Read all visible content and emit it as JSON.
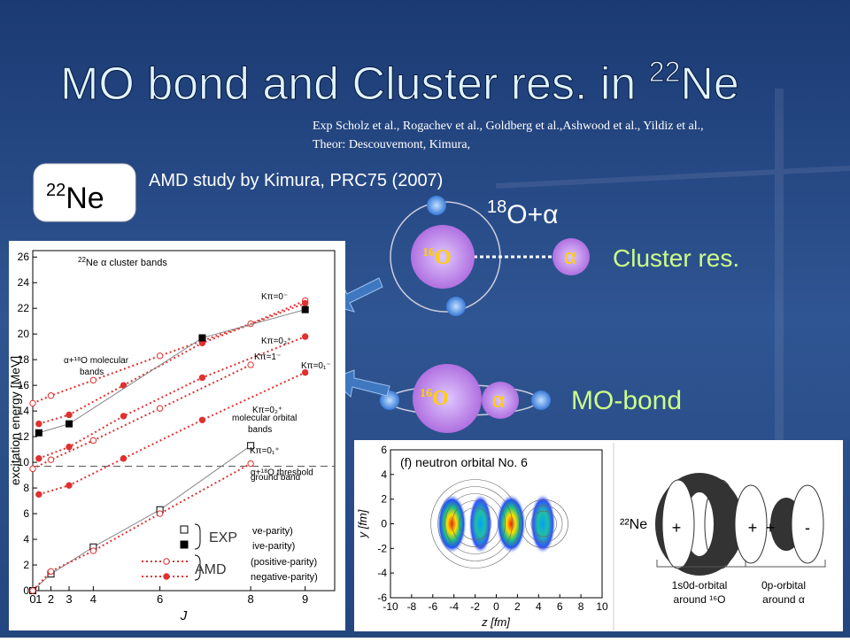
{
  "title": {
    "main": "MO bond and Cluster res. in ",
    "sup": "22",
    "element": "Ne"
  },
  "references": [
    "Exp Scholz et al., Rogachev et al., Goldberg et al.,Ashwood et al., Yildiz et al.,",
    "Theor: Descouvemont, Kimura,"
  ],
  "nucleus_label": {
    "sup": "22",
    "element": "Ne"
  },
  "study": "AMD study by Kimura, PRC75 (2007)",
  "cluster_model": {
    "channel": {
      "sup": "18",
      "text": "O+α"
    },
    "core": {
      "sup": "16",
      "element": "O"
    },
    "alpha": "α",
    "label": "Cluster res."
  },
  "mo_model": {
    "core": {
      "sup": "16",
      "element": "O"
    },
    "alpha": "α",
    "label": "MO-bond"
  },
  "energy_plot": {
    "panel_title": {
      "sup": "22",
      "text": "Ne α cluster bands"
    },
    "xlabel": "J",
    "ylabel": "excitation energy [MeV]",
    "ylim": [
      0,
      26.5
    ],
    "yticks": [
      0,
      2,
      4,
      6,
      8,
      10,
      12,
      14,
      16,
      18,
      20,
      22,
      24,
      26
    ],
    "xlim": [
      0,
      9.5
    ],
    "xscale": "J(J+1)",
    "xticks": [
      0,
      1,
      2,
      3,
      4,
      6,
      8,
      9
    ],
    "threshold": {
      "value": 9.7,
      "label": "α+¹⁸O threshold"
    },
    "series": [
      {
        "color": "#888888",
        "style": "solid",
        "marker": "open-square",
        "x": [
          0,
          2,
          4,
          6,
          8
        ],
        "values": [
          0,
          1.3,
          3.4,
          6.3,
          11.3
        ]
      },
      {
        "color": "#e03030",
        "style": "dotted",
        "marker": "open-circle",
        "x": [
          0,
          2,
          4,
          6,
          8
        ],
        "values": [
          0,
          1.5,
          3.1,
          6.0,
          9.9
        ]
      },
      {
        "color": "#e03030",
        "style": "dotted",
        "marker": "open-circle",
        "x": [
          0,
          2,
          4,
          6,
          8,
          9
        ],
        "values": [
          14.6,
          15.2,
          16.4,
          18.3,
          20.8,
          22.6
        ]
      },
      {
        "color": "#e03030",
        "style": "dotted",
        "marker": "filled-circle",
        "x": [
          1,
          3,
          5,
          7,
          9
        ],
        "values": [
          13.0,
          13.7,
          16.0,
          19.3,
          22.4
        ]
      },
      {
        "color": "#e03030",
        "style": "dotted",
        "marker": "filled-circle",
        "x": [
          1,
          3,
          5,
          7,
          9
        ],
        "values": [
          10.3,
          11.2,
          13.6,
          16.6,
          19.8
        ]
      },
      {
        "color": "#e03030",
        "style": "dotted",
        "marker": "open-circle",
        "x": [
          0,
          2,
          4,
          6,
          8
        ],
        "values": [
          9.5,
          10.2,
          11.7,
          14.2,
          17.6
        ]
      },
      {
        "color": "#e03030",
        "style": "dotted",
        "marker": "filled-circle",
        "x": [
          1,
          3,
          5,
          7,
          9
        ],
        "values": [
          7.5,
          8.2,
          10.3,
          13.3,
          17.0
        ]
      },
      {
        "color": "#888888",
        "style": "solid",
        "marker": "filled-square",
        "x": [
          1,
          3,
          7,
          9
        ],
        "values": [
          12.3,
          13.0,
          19.7,
          21.9
        ]
      }
    ],
    "band_labels": [
      "Kπ=0⁻",
      "Kπ=0₃⁺",
      "Kπ=1⁻",
      "Kπ=0₁⁻",
      "Kπ=0₂⁺",
      "Kπ=0₁⁺"
    ],
    "group_labels": [
      [
        "α+¹⁸O molecular",
        "bands"
      ],
      [
        "molecular orbital",
        "bands"
      ],
      [
        "ground band"
      ]
    ],
    "legend_fragments": [
      "ve-parity)",
      "ive-parity)",
      "(positive-parity)",
      "negative-parity)"
    ],
    "exp_label": "EXP",
    "amd_label": "AMD"
  },
  "orbital_plot": {
    "title": "(f) neutron orbital No. 6",
    "xlabel": "z [fm]",
    "ylabel": "y [fm]",
    "xlim": [
      -10,
      10
    ],
    "ylim": [
      -6,
      6
    ],
    "xticks": [
      -10,
      -8,
      -6,
      -4,
      -2,
      0,
      2,
      4,
      6,
      8,
      10
    ],
    "yticks": [
      -6,
      -4,
      -2,
      0,
      2,
      4,
      6
    ]
  },
  "schematic": {
    "nucleus": "²²Ne",
    "signs": [
      "+",
      "-",
      "+",
      "+",
      "-"
    ],
    "orbital_labels": [
      [
        "1s0d-orbital",
        "around ¹⁶O"
      ],
      [
        "0p-orbital",
        "around α"
      ]
    ]
  }
}
